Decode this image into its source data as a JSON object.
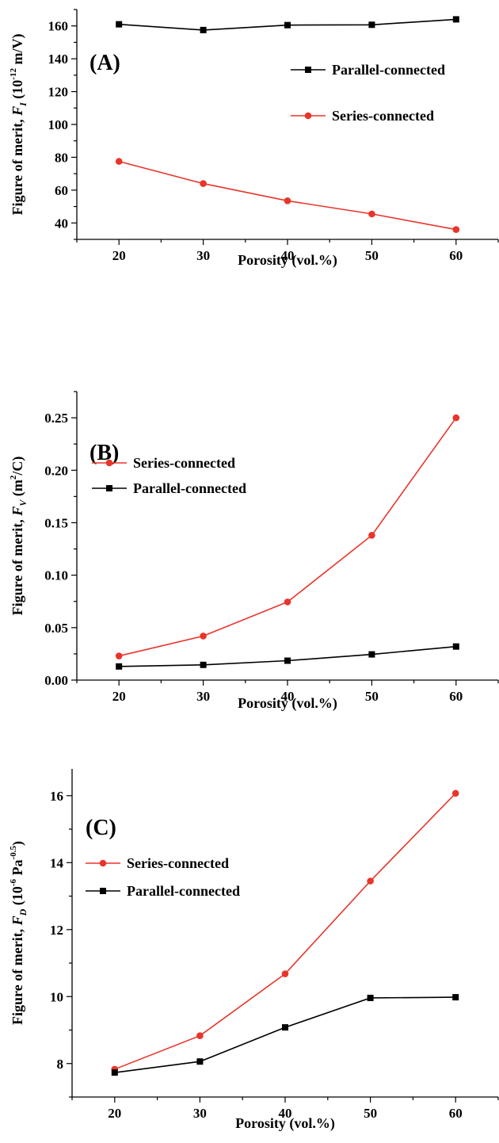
{
  "chart_data": [
    {
      "type": "line",
      "panel_label": "(A)",
      "xlabel": "Porosity (vol.%)",
      "ylabel": {
        "prefix": "Figure of merit, ",
        "symbol": "F",
        "subscript": "I",
        "unit_open": " (10",
        "unit_exp": "-12",
        "unit_close": " m/V)"
      },
      "x": [
        20,
        30,
        40,
        50,
        60
      ],
      "xlim": [
        15,
        65
      ],
      "ylim": [
        30,
        170
      ],
      "xticks": [
        20,
        30,
        40,
        50,
        60
      ],
      "yticks": [
        40,
        60,
        80,
        100,
        120,
        140,
        160
      ],
      "y_tick_labels": [
        "40",
        "60",
        "80",
        "100",
        "120",
        "140",
        "160"
      ],
      "legend_position": "upper-right",
      "series": [
        {
          "name": "Parallel-connected",
          "marker": "square",
          "color": "#000000",
          "values": [
            161,
            157.5,
            160.5,
            160.7,
            164
          ]
        },
        {
          "name": "Series-connected",
          "marker": "circle",
          "color": "#e8352b",
          "values": [
            77.5,
            64,
            53.5,
            45.5,
            36
          ]
        }
      ]
    },
    {
      "type": "line",
      "panel_label": "(B)",
      "xlabel": "Porosity (vol.%)",
      "ylabel": {
        "prefix": "Figure of merit, ",
        "symbol": "F",
        "subscript": "V",
        "unit_open": " (m",
        "unit_exp": "2",
        "unit_close": "/C)"
      },
      "x": [
        20,
        30,
        40,
        50,
        60
      ],
      "xlim": [
        15,
        65
      ],
      "ylim": [
        0,
        0.275
      ],
      "xticks": [
        20,
        30,
        40,
        50,
        60
      ],
      "yticks": [
        0,
        0.05,
        0.1,
        0.15,
        0.2,
        0.25
      ],
      "y_tick_labels": [
        "0.00",
        "0.05",
        "0.10",
        "0.15",
        "0.20",
        "0.25"
      ],
      "legend_position": "upper-left",
      "series": [
        {
          "name": "Series-connected",
          "marker": "circle",
          "color": "#e8352b",
          "values": [
            0.023,
            0.042,
            0.0745,
            0.138,
            0.25
          ]
        },
        {
          "name": "Parallel-connected",
          "marker": "square",
          "color": "#000000",
          "values": [
            0.013,
            0.0145,
            0.0185,
            0.0245,
            0.032
          ]
        }
      ]
    },
    {
      "type": "line",
      "panel_label": "(C)",
      "xlabel": "Porosity (vol.%)",
      "ylabel": {
        "prefix": "Figure of merit, ",
        "symbol": "F",
        "subscript": "D",
        "unit_open": " (10",
        "unit_exp": "-6",
        "unit_close": " Pa",
        "unit_exp2": "-0.5",
        "unit_end": ")"
      },
      "x": [
        20,
        30,
        40,
        50,
        60
      ],
      "xlim": [
        15,
        65
      ],
      "ylim": [
        7,
        16.8
      ],
      "xticks": [
        20,
        30,
        40,
        50,
        60
      ],
      "yticks": [
        8,
        10,
        12,
        14,
        16
      ],
      "y_tick_labels": [
        "8",
        "10",
        "12",
        "14",
        "16"
      ],
      "legend_position": "upper-left",
      "series": [
        {
          "name": "Series-connected",
          "marker": "circle",
          "color": "#e8352b",
          "values": [
            7.83,
            8.83,
            10.68,
            13.45,
            16.07
          ]
        },
        {
          "name": "Parallel-connected",
          "marker": "square",
          "color": "#000000",
          "values": [
            7.73,
            8.06,
            9.08,
            9.96,
            9.98
          ]
        }
      ]
    }
  ]
}
